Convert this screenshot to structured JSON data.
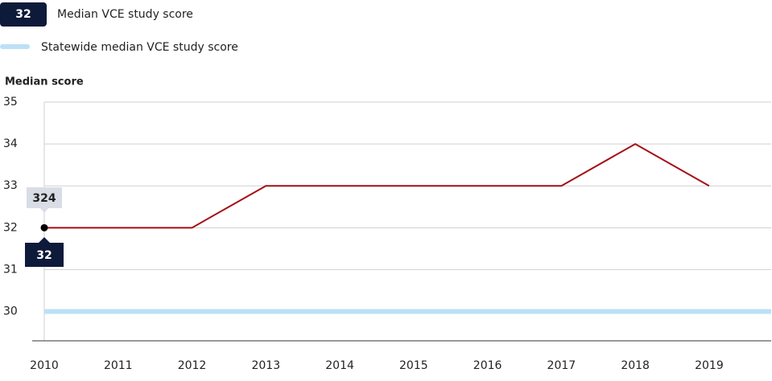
{
  "chart_data": {
    "type": "line",
    "y_label": "Median score",
    "x": [
      2010,
      2011,
      2012,
      2013,
      2014,
      2015,
      2016,
      2017,
      2018,
      2019
    ],
    "series": [
      {
        "name": "Median VCE study score",
        "color": "#a50f15",
        "values": [
          32,
          32,
          32,
          33,
          33,
          33,
          33,
          33,
          34,
          33
        ]
      }
    ],
    "reference_line": {
      "name": "Statewide median VCE study score",
      "value": 30,
      "color": "#bde0f5"
    },
    "tooltip": {
      "x": 2010,
      "label": 324
    },
    "xlim": [
      2010,
      2019.84
    ],
    "xticks": [
      2010,
      2011,
      2012,
      2013,
      2014,
      2015,
      2016,
      2017,
      2018,
      2019
    ],
    "ylim": [
      29.3,
      35
    ],
    "yticks": [
      30,
      31,
      32,
      33,
      34,
      35
    ],
    "grid": true
  }
}
